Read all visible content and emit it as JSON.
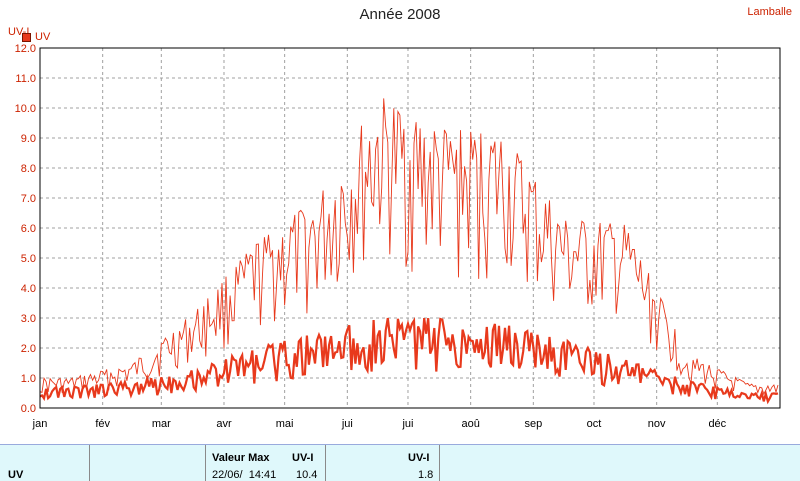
{
  "header": {
    "title": "Année 2008",
    "station": "Lamballe",
    "y_unit": "UV-I"
  },
  "legend": {
    "label": "UV"
  },
  "colors": {
    "series": "#e8391c",
    "text": "#cc2200",
    "grid": "#a0a0a0",
    "panel_bg": "#dff8fb"
  },
  "chart_data": {
    "type": "line",
    "title": "Année 2008",
    "ylabel": "UV-I",
    "xlabel": "",
    "ylim": [
      0,
      12
    ],
    "y_ticks": [
      "0.0",
      "1.0",
      "2.0",
      "3.0",
      "4.0",
      "5.0",
      "6.0",
      "7.0",
      "8.0",
      "9.0",
      "10.0",
      "11.0",
      "12.0"
    ],
    "x_tick_labels": [
      "jan",
      "fév",
      "mar",
      "avr",
      "mai",
      "jui",
      "jui",
      "aoû",
      "sep",
      "oct",
      "nov",
      "déc"
    ],
    "grid": true,
    "legend_position": "top-left",
    "series": [
      {
        "name": "UV",
        "kind": "daily_max",
        "months": [
          1,
          2,
          3,
          4,
          5,
          6,
          7,
          8,
          9,
          10,
          11,
          12
        ],
        "values": [
          1.0,
          1.5,
          3.2,
          5.5,
          7.0,
          10.4,
          9.3,
          9.2,
          6.3,
          6.1,
          1.8,
          0.8
        ]
      },
      {
        "name": "UV",
        "kind": "daily_mean",
        "months": [
          1,
          2,
          3,
          4,
          5,
          6,
          7,
          8,
          9,
          10,
          11,
          12
        ],
        "values": [
          0.7,
          0.9,
          1.3,
          2.0,
          2.5,
          3.0,
          3.0,
          2.8,
          2.3,
          1.6,
          0.9,
          0.5
        ]
      }
    ]
  },
  "panel": {
    "series_name": "UV",
    "max_header": "Valeur Max",
    "max_unit": "UV-I",
    "max_date": "22/06/  14:41",
    "max_value": "10.4",
    "avg_unit": "UV-I",
    "avg_value": "1.8"
  }
}
